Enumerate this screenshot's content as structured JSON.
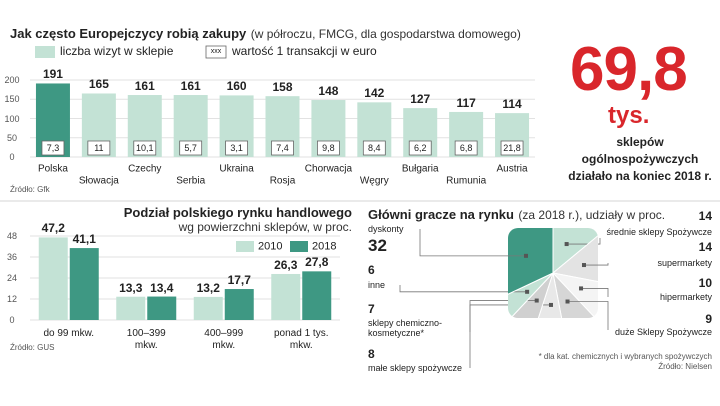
{
  "chart_data": [
    {
      "type": "bar",
      "title": "Jak często Europejczycy robią zakupy",
      "subtitle": "(w półroczu, FMCG, dla gospodarstwa domowego)",
      "categories": [
        "Polska",
        "Słowacja",
        "Czechy",
        "Serbia",
        "Ukraina",
        "Rosja",
        "Chorwacja",
        "Węgry",
        "Bułgaria",
        "Rumunia",
        "Austria"
      ],
      "series": [
        {
          "name": "liczba wizyt w sklepie",
          "color": "#c3e2d5",
          "colors": [
            "#3e9883",
            "#c3e2d5",
            "#c3e2d5",
            "#c3e2d5",
            "#c3e2d5",
            "#c3e2d5",
            "#c3e2d5",
            "#c3e2d5",
            "#c3e2d5",
            "#c3e2d5",
            "#c3e2d5"
          ],
          "values": [
            191,
            165,
            161,
            161,
            160,
            158,
            148,
            142,
            127,
            117,
            114
          ]
        },
        {
          "name": "wartość 1 transakcji w euro",
          "display": "label-box",
          "legend_box": "xxx",
          "values": [
            7.3,
            11,
            10.1,
            5.7,
            3.1,
            7.4,
            9.8,
            8.4,
            6.2,
            6.8,
            21.8
          ],
          "value_labels": [
            "7,3",
            "11",
            "10,1",
            "5,7",
            "3,1",
            "7,4",
            "9,8",
            "8,4",
            "6,2",
            "6,8",
            "21,8"
          ]
        }
      ],
      "ylim": [
        0,
        200
      ],
      "yticks": [
        0,
        50,
        100,
        150,
        200
      ],
      "grid": true,
      "source": "Źródło: Gfk"
    },
    {
      "type": "bar",
      "title": "Podział polskiego rynku handlowego",
      "subtitle": "wg powierzchni sklepów, w proc.",
      "categories": [
        "do 99 mkw.",
        "100–399 mkw.",
        "400–999 mkw.",
        "ponad 1 tys. mkw."
      ],
      "series": [
        {
          "name": "2010",
          "color": "#c3e2d5",
          "values": [
            47.2,
            13.3,
            13.2,
            26.3
          ],
          "value_labels": [
            "47,2",
            "13,3",
            "13,2",
            "26,3"
          ]
        },
        {
          "name": "2018",
          "color": "#3e9883",
          "values": [
            41.1,
            13.4,
            17.7,
            27.8
          ],
          "value_labels": [
            "41,1",
            "13,4",
            "17,7",
            "27,8"
          ]
        }
      ],
      "ylim": [
        0,
        48
      ],
      "yticks": [
        0,
        12,
        24,
        36,
        48
      ],
      "grid": true,
      "source": "Źródło: GUS"
    },
    {
      "type": "pie",
      "title": "Główni gracze na rynku",
      "subtitle": "(za 2018 r.), udziały w proc.",
      "categories": [
        "średnie sklepy Spożywcze",
        "supermarkety",
        "hipermarkety",
        "duże Sklepy Spożywcze",
        "małe sklepy spożywcze",
        "sklepy chemiczno-kosmetyczne*",
        "inne",
        "dyskonty"
      ],
      "values": [
        14,
        14,
        10,
        9,
        8,
        7,
        6,
        32
      ],
      "colors": [
        "#c3e2d5",
        "#e3e3e3",
        "#f4f4f4",
        "#d6d6d6",
        "#e8e8e8",
        "#d0d0d0",
        "#c3e2d5",
        "#3e9883"
      ],
      "footnote": "* dla kat. chemicznych i wybranych spożywczych",
      "source": "Źródło: Nielsen"
    }
  ],
  "callout": {
    "number": "69,8",
    "unit": "tys.",
    "text": "sklepów ogólnospożywczych działało na koniec 2018 r."
  }
}
